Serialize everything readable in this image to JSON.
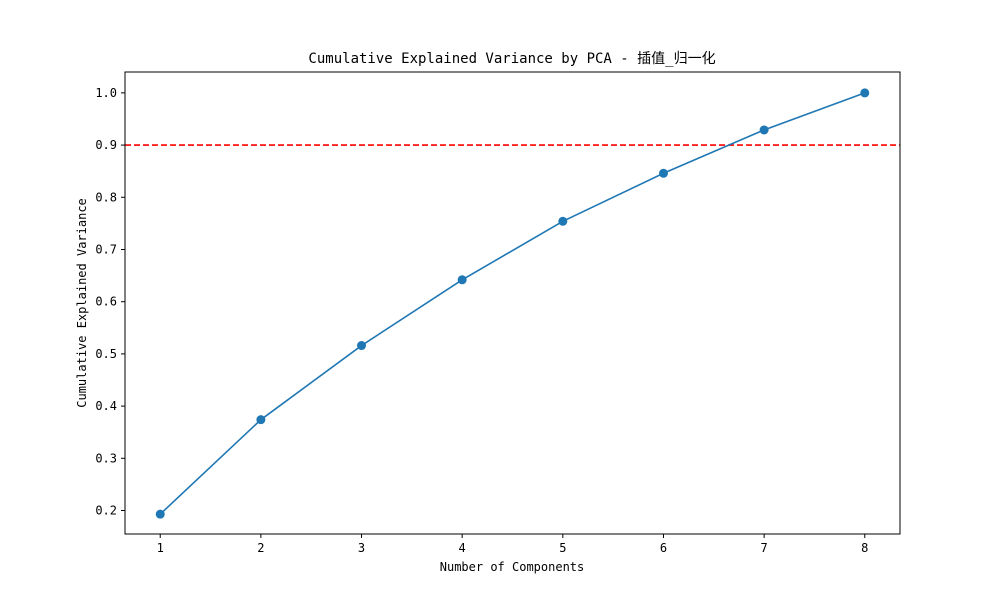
{
  "chart_data": {
    "type": "line",
    "title": "Cumulative Explained Variance by PCA - 插值_归一化",
    "xlabel": "Number of Components",
    "ylabel": "Cumulative Explained Variance",
    "x": [
      1,
      2,
      3,
      4,
      5,
      6,
      7,
      8
    ],
    "series": [
      {
        "values": [
          0.193,
          0.374,
          0.516,
          0.642,
          0.754,
          0.846,
          0.929,
          1.0
        ],
        "color": "#1f77b4",
        "marker": "circle"
      }
    ],
    "reference_line": {
      "y": 0.9,
      "color": "#ff0000",
      "style": "dashed"
    },
    "xlim": [
      0.65,
      8.35
    ],
    "ylim": [
      0.155,
      1.04
    ],
    "xticks": [
      1,
      2,
      3,
      4,
      5,
      6,
      7,
      8
    ],
    "yticks": [
      0.2,
      0.3,
      0.4,
      0.5,
      0.6,
      0.7,
      0.8,
      0.9,
      1.0
    ],
    "grid": false,
    "legend": "none"
  }
}
